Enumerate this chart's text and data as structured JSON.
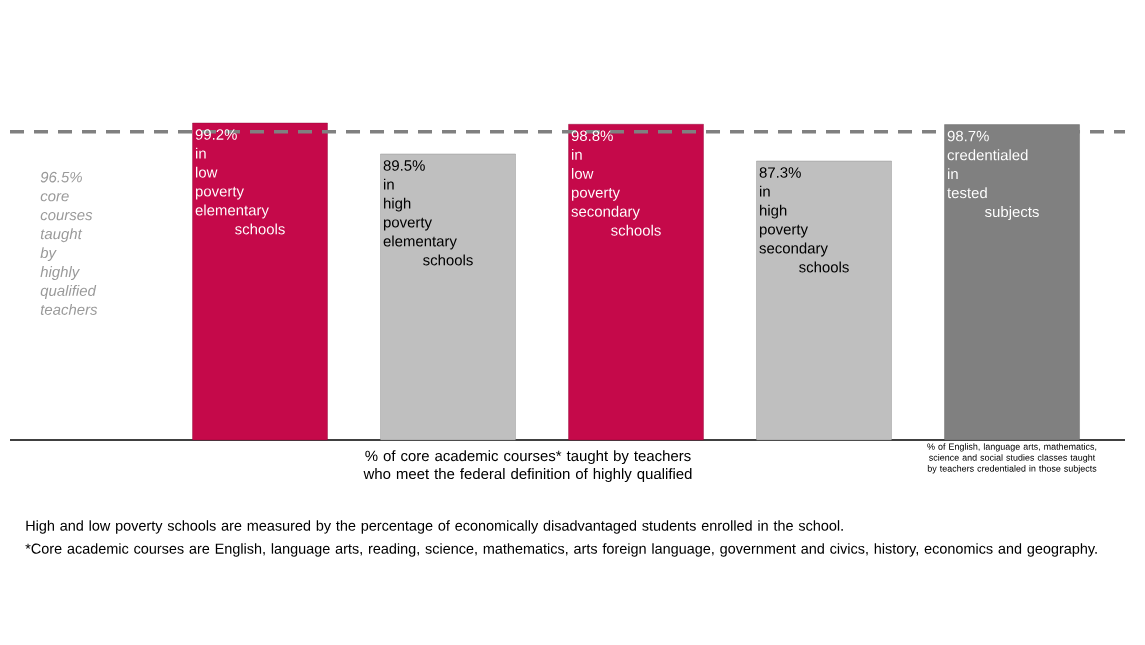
{
  "chart_data": {
    "type": "bar",
    "categories": [
      null,
      null,
      null,
      null,
      null
    ],
    "values": [
      99.2,
      89.5,
      98.8,
      87.3,
      98.7
    ],
    "colors": [
      "#c5094a",
      "#bfbfbf",
      "#c5094a",
      "#bfbfbf",
      "#808080"
    ],
    "value_labels": [
      "99.2% in low poverty elementary schools",
      "89.5% in high poverty elementary schools",
      "98.8% in low poverty secondary schools",
      "87.3% in high poverty secondary schools",
      "98.7% credentialed in tested subjects"
    ],
    "ref_lines": [
      {
        "axis": "y",
        "value": 96.5,
        "label": "96.5% core courses taught by highly qualified teachers",
        "color": "#808080",
        "line_style": "dashed"
      }
    ],
    "annotations": [
      "% of core academic courses* taught by teachers who meet the federal definition of highly qualified",
      "% of English, language arts, mathematics, science and social studies classes taught by teachers credentialed in those subjects",
      "High and low poverty schools are measured by the percentage of economically disadvantaged students enrolled in the school.",
      "*Core academic courses are English, language arts, reading, science, mathematics, arts foreign language, government and civics, history, economics and geography."
    ]
  }
}
